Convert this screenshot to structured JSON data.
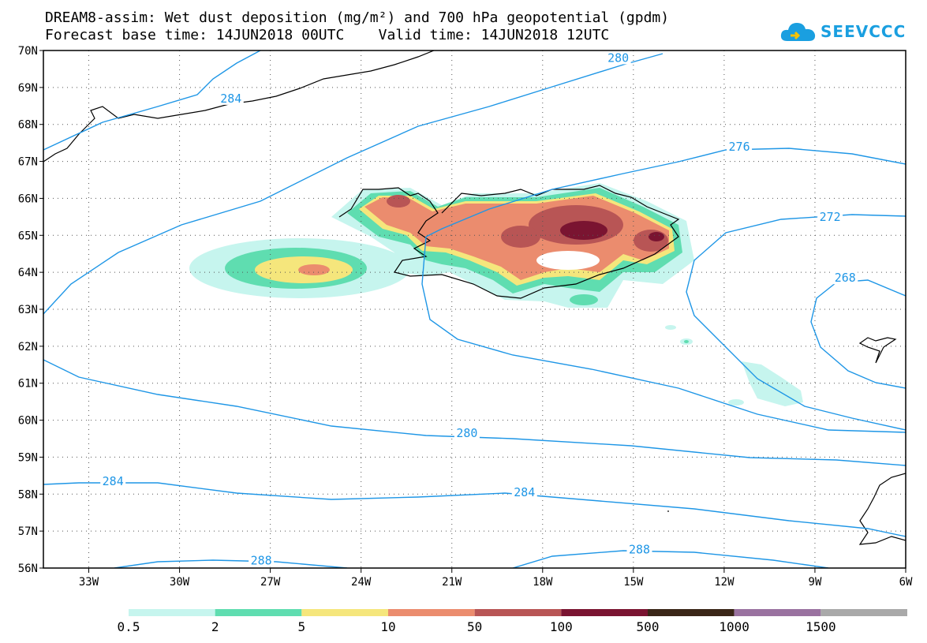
{
  "title_line1": "DREAM8-assim: Wet dust deposition (mg/m²) and 700 hPa geopotential (gpdm)",
  "title_line2": "Forecast base time: 14JUN2018 00UTC    Valid time: 14JUN2018 12UTC",
  "logo": {
    "text": "SEEVCCC",
    "icon": "cloud-icon",
    "color": "#1a9fe0"
  },
  "map": {
    "lon_range": [
      -34.5,
      -6
    ],
    "lat_range": [
      56,
      70
    ],
    "lon_ticks": [
      {
        "value": -33,
        "label": "33W"
      },
      {
        "value": -30,
        "label": "30W"
      },
      {
        "value": -27,
        "label": "27W"
      },
      {
        "value": -24,
        "label": "24W"
      },
      {
        "value": -21,
        "label": "21W"
      },
      {
        "value": -18,
        "label": "18W"
      },
      {
        "value": -15,
        "label": "15W"
      },
      {
        "value": -12,
        "label": "12W"
      },
      {
        "value": -9,
        "label": "9W"
      },
      {
        "value": -6,
        "label": "6W"
      }
    ],
    "lat_ticks": [
      {
        "value": 70,
        "label": "70N"
      },
      {
        "value": 69,
        "label": "69N"
      },
      {
        "value": 68,
        "label": "68N"
      },
      {
        "value": 67,
        "label": "67N"
      },
      {
        "value": 66,
        "label": "66N"
      },
      {
        "value": 65,
        "label": "65N"
      },
      {
        "value": 64,
        "label": "64N"
      },
      {
        "value": 63,
        "label": "63N"
      },
      {
        "value": 62,
        "label": "62N"
      },
      {
        "value": 61,
        "label": "61N"
      },
      {
        "value": 60,
        "label": "60N"
      },
      {
        "value": 59,
        "label": "59N"
      },
      {
        "value": 58,
        "label": "58N"
      },
      {
        "value": 57,
        "label": "57N"
      },
      {
        "value": 56,
        "label": "56N"
      }
    ],
    "contour_color": "#1e96e6",
    "contour_labels": [
      {
        "text": "280",
        "lon": -15.5,
        "lat": 69.8
      },
      {
        "text": "284",
        "lon": -28.3,
        "lat": 68.7
      },
      {
        "text": "276",
        "lon": -11.5,
        "lat": 67.4
      },
      {
        "text": "272",
        "lon": -8.5,
        "lat": 65.5
      },
      {
        "text": "268",
        "lon": -8.0,
        "lat": 63.85
      },
      {
        "text": "280",
        "lon": -20.5,
        "lat": 59.65
      },
      {
        "text": "284",
        "lon": -32.2,
        "lat": 58.35
      },
      {
        "text": "284",
        "lon": -18.6,
        "lat": 58.05
      },
      {
        "text": "288",
        "lon": -27.3,
        "lat": 56.2
      },
      {
        "text": "288",
        "lon": -14.8,
        "lat": 56.5
      }
    ]
  },
  "legend": {
    "colors": [
      "#c6f5ee",
      "#5fddb0",
      "#f5e67c",
      "#eb8c6e",
      "#b85555",
      "#7a1431",
      "#3a2618",
      "#9a72a0",
      "#a9a9a9"
    ],
    "labels": [
      "0.5",
      "2",
      "5",
      "10",
      "50",
      "100",
      "500",
      "1000",
      "1500"
    ]
  }
}
